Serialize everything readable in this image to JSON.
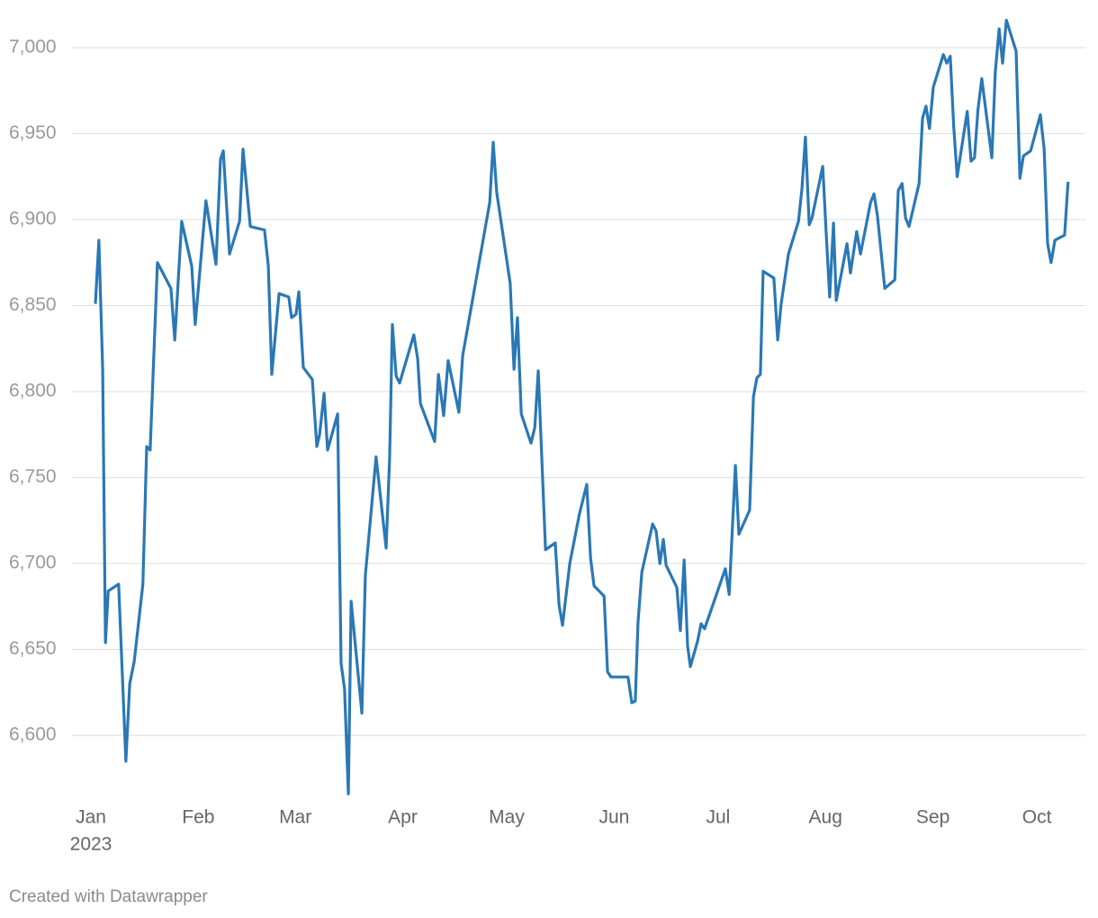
{
  "chart_data": {
    "type": "line",
    "year": "2023",
    "credit": "Created with Datawrapper",
    "x": [
      1.3,
      2.3,
      3.4,
      4.2,
      5,
      8,
      9.4,
      10.1,
      11.2,
      12.5,
      15,
      16.1,
      17.1,
      19.2,
      23.1,
      24.2,
      26.2,
      29.1,
      30.1,
      33.2,
      36.1,
      37.4,
      38.2,
      40,
      42.9,
      43.9,
      46,
      50.1,
      51.2,
      52.2,
      54.3,
      57.1,
      57.9,
      59.2,
      60,
      61.3,
      63.9,
      65.2,
      66,
      67.3,
      68.3,
      71.2,
      72.2,
      73.2,
      74.3,
      75.1,
      78.2,
      79.2,
      82.3,
      85.2,
      86.2,
      87,
      88.1,
      89.1,
      93.2,
      94.3,
      95.1,
      99.2,
      100.3,
      101.8,
      103.1,
      106.2,
      107.3,
      115.1,
      116.1,
      117.1,
      121,
      122.1,
      123.1,
      124.2,
      127,
      128.1,
      129.1,
      131.2,
      134,
      135.1,
      136.1,
      138.2,
      141,
      143.1,
      144.2,
      145.2,
      148.1,
      149.1,
      150.1,
      155,
      156.1,
      157.1,
      157.9,
      159,
      162.1,
      163.1,
      164.2,
      165.2,
      166,
      169.1,
      170.1,
      171.2,
      172.2,
      173,
      175.1,
      176.1,
      177.1,
      183.1,
      184.2,
      186,
      187,
      190.1,
      191.2,
      192.2,
      193.2,
      194,
      197.1,
      198.2,
      199.2,
      201.3,
      204.2,
      205.2,
      206.2,
      207.3,
      208.1,
      211.2,
      212.2,
      213.2,
      214.3,
      215.1,
      218.2,
      219.2,
      221,
      222.1,
      225,
      226,
      227,
      229.1,
      232,
      233,
      234.1,
      235.1,
      236.1,
      239,
      240,
      241,
      242,
      243.1,
      246,
      247,
      248,
      249,
      250,
      252.9,
      254,
      255,
      256,
      257.1,
      260,
      261,
      262.1,
      263.1,
      264.2,
      267,
      268.1,
      269.1,
      271.2,
      274,
      275.1,
      276.1,
      277.1,
      278.2,
      281,
      282
    ],
    "series": [
      {
        "color": "#2a78b5",
        "values": [
          6851,
          6888,
          6813,
          6654,
          6684,
          6688,
          6619,
          6585,
          6630,
          6643,
          6688,
          6768,
          6766,
          6875,
          6860,
          6830,
          6899,
          6873,
          6839,
          6911,
          6874,
          6935,
          6940,
          6880,
          6899,
          6941,
          6896,
          6894,
          6873,
          6810,
          6857,
          6855,
          6843,
          6845,
          6858,
          6814,
          6807,
          6768,
          6775,
          6799,
          6766,
          6787,
          6642,
          6627,
          6566,
          6678,
          6613,
          6693,
          6762,
          6709,
          6761,
          6839,
          6809,
          6805,
          6833,
          6819,
          6793,
          6771,
          6810,
          6786,
          6818,
          6788,
          6821,
          6910,
          6945,
          6916,
          6863,
          6813,
          6843,
          6787,
          6770,
          6779,
          6812,
          6708,
          6712,
          6676,
          6664,
          6700,
          6729,
          6746,
          6703,
          6687,
          6681,
          6637,
          6634,
          6634,
          6619,
          6620,
          6666,
          6695,
          6723,
          6719,
          6700,
          6714,
          6699,
          6686,
          6661,
          6702,
          6652,
          6640,
          6655,
          6665,
          6662,
          6697,
          6682,
          6757,
          6717,
          6731,
          6797,
          6808,
          6810,
          6870,
          6866,
          6830,
          6851,
          6880,
          6899,
          6918,
          6948,
          6897,
          6901,
          6931,
          6892,
          6855,
          6898,
          6853,
          6886,
          6869,
          6893,
          6880,
          6910,
          6915,
          6902,
          6860,
          6865,
          6917,
          6921,
          6901,
          6896,
          6921,
          6959,
          6966,
          6953,
          6977,
          6996,
          6991,
          6995,
          6954,
          6925,
          6963,
          6934,
          6936,
          6964,
          6982,
          6936,
          6986,
          7011,
          6991,
          7016,
          6998,
          6924,
          6937,
          6940,
          6961,
          6941,
          6886,
          6875,
          6888,
          6891,
          6922
        ]
      }
    ],
    "xlim": [
      -5,
      287
    ],
    "xticks": [
      {
        "value": 0,
        "label": "Jan"
      },
      {
        "value": 31,
        "label": "Feb"
      },
      {
        "value": 59,
        "label": "Mar"
      },
      {
        "value": 90,
        "label": "Apr"
      },
      {
        "value": 120,
        "label": "May"
      },
      {
        "value": 151,
        "label": "Jun"
      },
      {
        "value": 181,
        "label": "Jul"
      },
      {
        "value": 212,
        "label": "Aug"
      },
      {
        "value": 243,
        "label": "Sep"
      },
      {
        "value": 273,
        "label": "Oct"
      }
    ],
    "ylim": [
      6565,
      7020
    ],
    "yticks": [
      {
        "value": 6600,
        "label": "6,600"
      },
      {
        "value": 6650,
        "label": "6,650"
      },
      {
        "value": 6700,
        "label": "6,700"
      },
      {
        "value": 6750,
        "label": "6,750"
      },
      {
        "value": 6800,
        "label": "6,800"
      },
      {
        "value": 6850,
        "label": "6,850"
      },
      {
        "value": 6900,
        "label": "6,900"
      },
      {
        "value": 6950,
        "label": "6,950"
      },
      {
        "value": 7000,
        "label": "7,000"
      }
    ],
    "grid": true
  }
}
